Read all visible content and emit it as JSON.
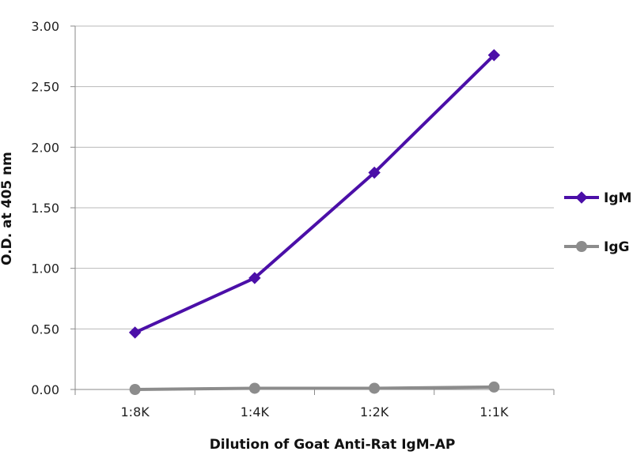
{
  "chart_data": {
    "type": "line",
    "title": "",
    "xlabel": "Dilution of Goat Anti-Rat IgM-AP",
    "ylabel": "O.D. at 405 nm",
    "categories": [
      "1:8K",
      "1:4K",
      "1:2K",
      "1:1K"
    ],
    "y_ticks": [
      "0.00",
      "0.50",
      "1.00",
      "1.50",
      "2.00",
      "2.50",
      "3.00"
    ],
    "ylim": [
      0,
      3
    ],
    "grid": true,
    "legend_position": "right",
    "series": [
      {
        "name": "IgM",
        "values": [
          0.47,
          0.92,
          1.79,
          2.76
        ],
        "color": "#4B0FA8",
        "marker": "diamond"
      },
      {
        "name": "IgG",
        "values": [
          0.0,
          0.01,
          0.01,
          0.02
        ],
        "color": "#8C8C8C",
        "marker": "circle"
      }
    ]
  }
}
